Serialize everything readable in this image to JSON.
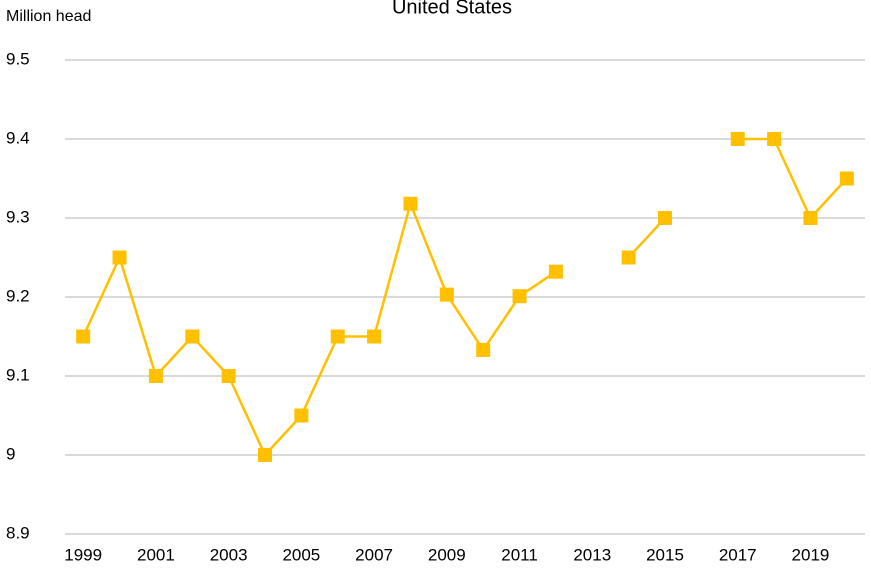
{
  "chart_data": {
    "type": "line",
    "title": "United States",
    "y_label": "Million head",
    "categories": [
      "1999",
      null,
      "2001",
      null,
      "2003",
      null,
      "2005",
      null,
      "2007",
      null,
      "2009",
      null,
      "2011",
      null,
      "2013",
      null,
      "2015",
      null,
      "2017",
      null,
      "2019",
      null
    ],
    "series": [
      {
        "name": "United States",
        "color": "#FFC000",
        "values": [
          9.15,
          9.25,
          9.1,
          9.15,
          9.1,
          9.0,
          9.05,
          9.15,
          9.15,
          9.318,
          9.203,
          9.133,
          9.201,
          9.232,
          null,
          9.25,
          9.3,
          null,
          9.4,
          9.4,
          9.3,
          9.35
        ]
      }
    ],
    "ylim": [
      8.9,
      9.5
    ],
    "yticks": [
      8.9,
      9,
      9.1,
      9.2,
      9.3,
      9.4,
      9.5
    ],
    "grid": true,
    "legend": false
  }
}
